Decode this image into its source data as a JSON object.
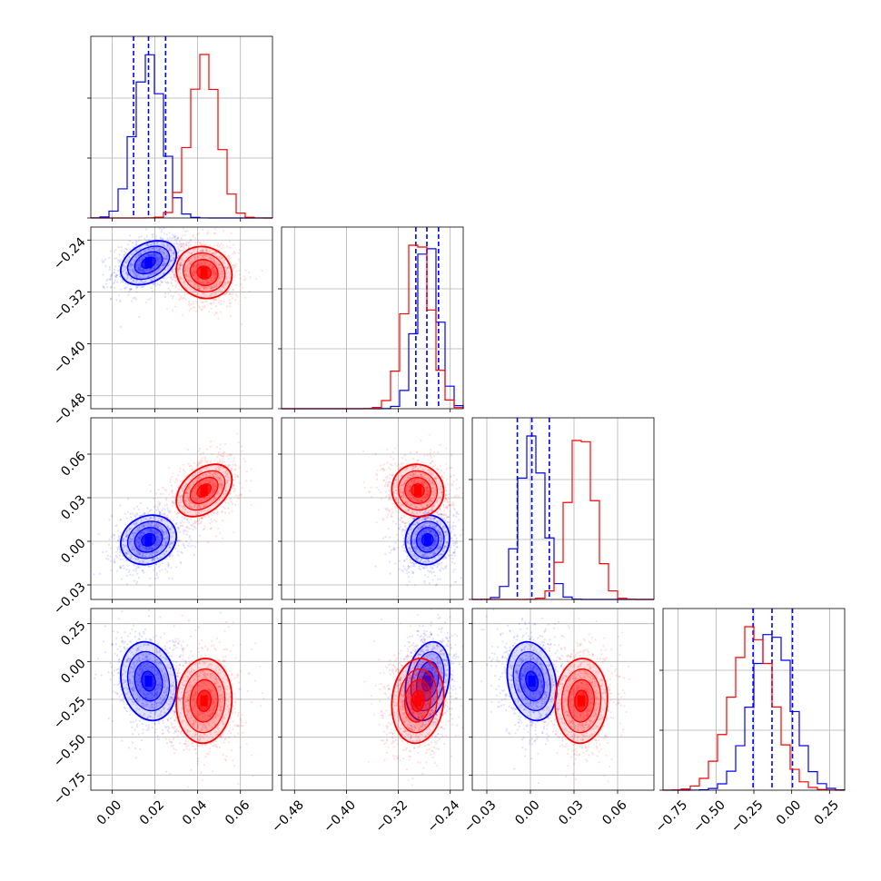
{
  "chart_data": {
    "type": "corner",
    "n_params": 4,
    "grid": true,
    "colors": {
      "a": "#0000ff",
      "b": "#ff0000"
    },
    "params": [
      {
        "range": [
          -0.01,
          0.075
        ],
        "ticks": [
          0.0,
          0.02,
          0.04,
          0.06
        ],
        "tick_labels": [
          "0.00",
          "0.02",
          "0.04",
          "0.06"
        ]
      },
      {
        "range": [
          -0.5,
          -0.22
        ],
        "ticks": [
          -0.48,
          -0.4,
          -0.32,
          -0.24
        ],
        "tick_labels": [
          "−0.48",
          "−0.40",
          "−0.32",
          "−0.24"
        ]
      },
      {
        "range": [
          -0.04,
          0.085
        ],
        "ticks": [
          -0.03,
          0.0,
          0.03,
          0.06
        ],
        "tick_labels": [
          "−0.03",
          "0.00",
          "0.03",
          "0.06"
        ]
      },
      {
        "range": [
          -0.85,
          0.35
        ],
        "ticks": [
          -0.75,
          -0.5,
          -0.25,
          0.0,
          0.25
        ],
        "tick_labels": [
          "−0.75",
          "−0.50",
          "−0.25",
          "0.00",
          "0.25"
        ]
      }
    ],
    "series": [
      {
        "color": "blue",
        "mean": [
          0.017,
          -0.275,
          0.001,
          -0.13
        ],
        "std": [
          0.0065,
          0.017,
          0.0085,
          0.13
        ],
        "quantiles": [
          [
            0.01,
            0.017,
            0.025
          ],
          [
            -0.293,
            -0.276,
            -0.258
          ],
          [
            -0.009,
            0.001,
            0.013
          ],
          [
            -0.255,
            -0.13,
            0.005
          ]
        ]
      },
      {
        "color": "red",
        "mean": [
          0.043,
          -0.29,
          0.035,
          -0.26
        ],
        "std": [
          0.0065,
          0.02,
          0.009,
          0.14
        ],
        "quantiles": []
      }
    ],
    "correlations": {
      "blue": {
        "1-0": 0.35,
        "2-0": 0.15,
        "3-0": -0.15,
        "2-1": 0.05,
        "3-1": 0.25,
        "3-2": -0.2
      },
      "red": {
        "1-0": -0.1,
        "2-0": 0.4,
        "3-0": 0.05,
        "2-1": -0.05,
        "3-1": 0.1,
        "3-2": 0.05
      }
    }
  }
}
